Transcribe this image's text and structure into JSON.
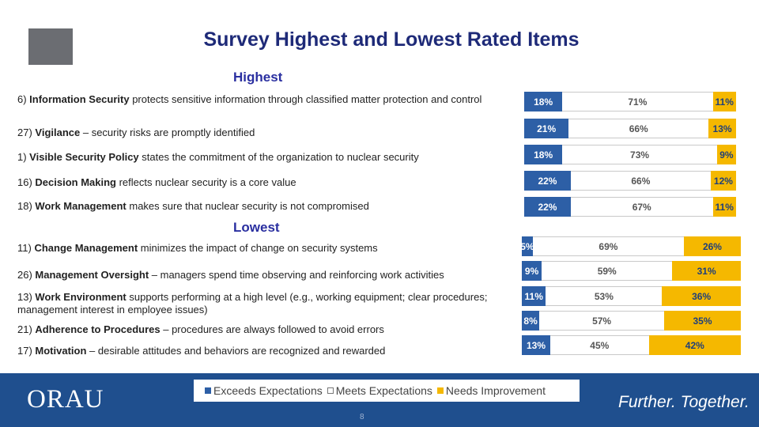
{
  "slide": {
    "title": "Survey Highest and Lowest Rated Items",
    "highest_label": "Highest",
    "lowest_label": "Lowest",
    "page_number": "8"
  },
  "items": [
    {
      "num": "6)",
      "bold": "Information Security",
      "text": " protects sensitive information through classified matter protection and control"
    },
    {
      "num": "27)",
      "bold": "Vigilance",
      "text": " – security risks are promptly identified"
    },
    {
      "num": "1)",
      "bold": "Visible Security Policy",
      "text": " states the commitment of the organization to nuclear security"
    },
    {
      "num": "16)",
      "bold": "Decision Making",
      "text": " reflects nuclear security is a core value"
    },
    {
      "num": "18)",
      "bold": "Work Management",
      "text": " makes sure that nuclear security is not compromised"
    },
    {
      "num": "11)",
      "bold": "Change Management",
      "text": " minimizes the impact of change on security systems"
    },
    {
      "num": "26)",
      "bold": "Management Oversight",
      "text": " – managers spend time observing and reinforcing work activities"
    },
    {
      "num": "13)",
      "bold": "Work Environment",
      "text": " supports performing at a high level (e.g., working equipment; clear procedures; management interest in employee issues)"
    },
    {
      "num": "21)",
      "bold": "Adherence to Procedures",
      "text": " – procedures are always followed to avoid errors"
    },
    {
      "num": "17)",
      "bold": "Motivation",
      "text": " – desirable attitudes and behaviors are recognized and rewarded"
    }
  ],
  "chart_data": {
    "type": "bar",
    "stacked": true,
    "orientation": "horizontal",
    "series_names": [
      "Exceeds Expectations",
      "Meets Expectations",
      "Needs Improvement"
    ],
    "colors": {
      "exceeds": "#2d5fa6",
      "meets": "#ffffff",
      "needs": "#f5b800"
    },
    "groups": [
      {
        "name": "Highest",
        "rows": [
          {
            "values": [
              18,
              71,
              11
            ],
            "labels": [
              "18%",
              "71%",
              "11%"
            ]
          },
          {
            "values": [
              21,
              66,
              13
            ],
            "labels": [
              "21%",
              "66%",
              "13%"
            ]
          },
          {
            "values": [
              18,
              73,
              9
            ],
            "labels": [
              "18%",
              "73%",
              "9%"
            ]
          },
          {
            "values": [
              22,
              66,
              12
            ],
            "labels": [
              "22%",
              "66%",
              "12%"
            ]
          },
          {
            "values": [
              22,
              67,
              11
            ],
            "labels": [
              "22%",
              "67%",
              "11%"
            ]
          }
        ]
      },
      {
        "name": "Lowest",
        "rows": [
          {
            "values": [
              5,
              69,
              26
            ],
            "labels": [
              "5%",
              "69%",
              "26%"
            ]
          },
          {
            "values": [
              9,
              59,
              31
            ],
            "labels": [
              "9%",
              "59%",
              "31%"
            ]
          },
          {
            "values": [
              11,
              53,
              36
            ],
            "labels": [
              "11%",
              "53%",
              "36%"
            ]
          },
          {
            "values": [
              8,
              57,
              35
            ],
            "labels": [
              "8%",
              "57%",
              "35%"
            ]
          },
          {
            "values": [
              13,
              45,
              42
            ],
            "labels": [
              "13%",
              "45%",
              "42%"
            ]
          }
        ]
      }
    ]
  },
  "footer": {
    "logo_text": "ORAU",
    "tagline": "Further. Together."
  }
}
